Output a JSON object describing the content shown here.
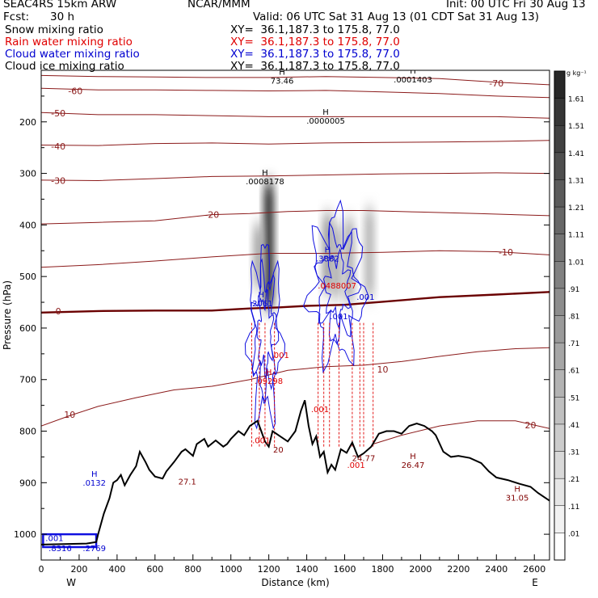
{
  "header": {
    "model": "SEAC4RS 15km ARW",
    "org": "NCAR/MMM",
    "init": "Init: 00 UTC Fri 30 Aug 13",
    "fcst_label": "Fcst:",
    "fcst_value": "30 h",
    "valid": "Valid: 06 UTC Sat 31 Aug 13 (01 CDT Sat 31 Aug 13)"
  },
  "legend": [
    {
      "label": "Snow mixing ratio",
      "xy": "XY=  36.1,187.3 to 175.8, 77.0",
      "color": "#000000"
    },
    {
      "label": "Rain water mixing ratio",
      "xy": "XY=  36.1,187.3 to 175.8, 77.0",
      "color": "#e00000"
    },
    {
      "label": "Cloud water mixing ratio",
      "xy": "XY=  36.1,187.3 to 175.8, 77.0",
      "color": "#0000d0"
    },
    {
      "label": "Cloud ice mixing ratio",
      "xy": "XY=  36.1,187.3 to 175.8, 77.0",
      "color": "#000000"
    }
  ],
  "chart_data": {
    "type": "cross-section",
    "xlabel": "Distance (km)",
    "ylabel": "Pressure (hPa)",
    "xlim": [
      0,
      2680
    ],
    "ylim": [
      1050,
      100
    ],
    "x_ticks": [
      0,
      200,
      400,
      600,
      800,
      1000,
      1200,
      1400,
      1600,
      1800,
      2000,
      2200,
      2400,
      2600
    ],
    "y_ticks": [
      200,
      300,
      400,
      500,
      600,
      700,
      800,
      900,
      1000
    ],
    "x_end_labels": {
      "left": "W",
      "right": "E"
    },
    "colorbar": {
      "unit": "g kg⁻¹",
      "labels": [
        "1.61",
        "1.51",
        "1.41",
        "1.31",
        "1.21",
        "1.11",
        "1.01",
        ".91",
        ".81",
        ".71",
        ".61",
        ".51",
        ".41",
        ".31",
        ".21",
        ".11",
        ".01"
      ]
    },
    "temperature_contours": [
      {
        "label": "-70",
        "x": 2400,
        "p": 125,
        "pts": [
          [
            0,
            110
          ],
          [
            300,
            112
          ],
          [
            600,
            113
          ],
          [
            900,
            114
          ],
          [
            1200,
            114
          ],
          [
            1500,
            112
          ],
          [
            1800,
            114
          ],
          [
            2100,
            116
          ],
          [
            2400,
            123
          ],
          [
            2680,
            128
          ]
        ]
      },
      {
        "label": "-60",
        "x": 180,
        "p": 140,
        "pts": [
          [
            0,
            135
          ],
          [
            300,
            138
          ],
          [
            600,
            138
          ],
          [
            900,
            139
          ],
          [
            1200,
            140
          ],
          [
            1500,
            139
          ],
          [
            1800,
            142
          ],
          [
            2100,
            145
          ],
          [
            2400,
            150
          ],
          [
            2680,
            153
          ]
        ]
      },
      {
        "label": "-50",
        "x": 90,
        "p": 183,
        "pts": [
          [
            0,
            182
          ],
          [
            300,
            186
          ],
          [
            600,
            186
          ],
          [
            900,
            188
          ],
          [
            1200,
            190
          ],
          [
            1500,
            190
          ],
          [
            1800,
            190
          ],
          [
            2100,
            190
          ],
          [
            2400,
            190
          ],
          [
            2680,
            193
          ]
        ]
      },
      {
        "label": "-40",
        "x": 90,
        "p": 247,
        "pts": [
          [
            0,
            245
          ],
          [
            300,
            246
          ],
          [
            600,
            242
          ],
          [
            900,
            241
          ],
          [
            1200,
            243
          ],
          [
            1500,
            241
          ],
          [
            1800,
            240
          ],
          [
            2100,
            239
          ],
          [
            2400,
            238
          ],
          [
            2680,
            236
          ]
        ]
      },
      {
        "label": "-30",
        "x": 90,
        "p": 314,
        "pts": [
          [
            0,
            313
          ],
          [
            300,
            314
          ],
          [
            600,
            310
          ],
          [
            900,
            306
          ],
          [
            1200,
            305
          ],
          [
            1500,
            303
          ],
          [
            1800,
            301
          ],
          [
            2100,
            300
          ],
          [
            2400,
            299
          ],
          [
            2680,
            300
          ]
        ]
      },
      {
        "label": "-20",
        "x": 900,
        "p": 380,
        "pts": [
          [
            0,
            398
          ],
          [
            300,
            395
          ],
          [
            600,
            392
          ],
          [
            900,
            380
          ],
          [
            1100,
            378
          ],
          [
            1300,
            374
          ],
          [
            1500,
            372
          ],
          [
            1700,
            372
          ],
          [
            2000,
            375
          ],
          [
            2300,
            378
          ],
          [
            2680,
            382
          ]
        ]
      },
      {
        "label": "-10",
        "x": 2450,
        "p": 453,
        "pts": [
          [
            0,
            482
          ],
          [
            300,
            477
          ],
          [
            600,
            470
          ],
          [
            900,
            462
          ],
          [
            1200,
            455
          ],
          [
            1500,
            455
          ],
          [
            1800,
            453
          ],
          [
            2100,
            450
          ],
          [
            2400,
            452
          ],
          [
            2680,
            458
          ]
        ]
      },
      {
        "label": "0",
        "x": 90,
        "p": 567,
        "pts": [
          [
            0,
            570
          ],
          [
            300,
            567
          ],
          [
            600,
            566
          ],
          [
            900,
            566
          ],
          [
            1100,
            562
          ],
          [
            1250,
            560
          ],
          [
            1400,
            557
          ],
          [
            1600,
            555
          ],
          [
            1800,
            549
          ],
          [
            2100,
            540
          ],
          [
            2400,
            535
          ],
          [
            2680,
            530
          ]
        ]
      },
      {
        "label": "10",
        "x": 150,
        "p": 768,
        "pts": [
          [
            0,
            790
          ],
          [
            150,
            770
          ],
          [
            300,
            752
          ],
          [
            500,
            735
          ],
          [
            700,
            720
          ],
          [
            900,
            713
          ],
          [
            1100,
            700
          ],
          [
            1300,
            682
          ],
          [
            1500,
            675
          ],
          [
            1700,
            672
          ],
          [
            1900,
            665
          ],
          [
            2100,
            655
          ],
          [
            2300,
            646
          ],
          [
            2500,
            640
          ],
          [
            2680,
            638
          ]
        ]
      },
      {
        "label": "10",
        "x": 1800,
        "p": 680,
        "pts": []
      },
      {
        "label": "20",
        "x": 2580,
        "p": 788,
        "pts": [
          [
            1750,
            825
          ],
          [
            1900,
            808
          ],
          [
            2100,
            790
          ],
          [
            2300,
            780
          ],
          [
            2500,
            780
          ],
          [
            2680,
            795
          ]
        ]
      }
    ],
    "terrain": [
      [
        0,
        1020
      ],
      [
        240,
        1018
      ],
      [
        290,
        1015
      ],
      [
        300,
        1000
      ],
      [
        330,
        960
      ],
      [
        360,
        930
      ],
      [
        380,
        900
      ],
      [
        400,
        895
      ],
      [
        420,
        885
      ],
      [
        440,
        905
      ],
      [
        470,
        885
      ],
      [
        500,
        868
      ],
      [
        520,
        840
      ],
      [
        550,
        860
      ],
      [
        570,
        875
      ],
      [
        600,
        888
      ],
      [
        640,
        892
      ],
      [
        660,
        878
      ],
      [
        700,
        860
      ],
      [
        740,
        840
      ],
      [
        760,
        835
      ],
      [
        800,
        848
      ],
      [
        820,
        825
      ],
      [
        860,
        815
      ],
      [
        880,
        830
      ],
      [
        920,
        818
      ],
      [
        960,
        830
      ],
      [
        980,
        825
      ],
      [
        1000,
        815
      ],
      [
        1040,
        800
      ],
      [
        1070,
        808
      ],
      [
        1100,
        790
      ],
      [
        1140,
        780
      ],
      [
        1160,
        800
      ],
      [
        1180,
        820
      ],
      [
        1200,
        830
      ],
      [
        1220,
        800
      ],
      [
        1260,
        810
      ],
      [
        1300,
        820
      ],
      [
        1340,
        800
      ],
      [
        1370,
        760
      ],
      [
        1390,
        740
      ],
      [
        1410,
        790
      ],
      [
        1430,
        825
      ],
      [
        1450,
        810
      ],
      [
        1470,
        850
      ],
      [
        1490,
        840
      ],
      [
        1510,
        880
      ],
      [
        1530,
        865
      ],
      [
        1550,
        875
      ],
      [
        1580,
        835
      ],
      [
        1610,
        842
      ],
      [
        1640,
        822
      ],
      [
        1670,
        850
      ],
      [
        1700,
        843
      ],
      [
        1740,
        830
      ],
      [
        1780,
        805
      ],
      [
        1820,
        800
      ],
      [
        1860,
        800
      ],
      [
        1900,
        805
      ],
      [
        1940,
        790
      ],
      [
        1980,
        785
      ],
      [
        2020,
        790
      ],
      [
        2060,
        800
      ],
      [
        2080,
        808
      ],
      [
        2120,
        840
      ],
      [
        2160,
        850
      ],
      [
        2200,
        848
      ],
      [
        2260,
        852
      ],
      [
        2320,
        862
      ],
      [
        2360,
        878
      ],
      [
        2400,
        890
      ],
      [
        2460,
        895
      ],
      [
        2520,
        902
      ],
      [
        2580,
        908
      ],
      [
        2620,
        920
      ],
      [
        2680,
        935
      ]
    ],
    "annotations": [
      {
        "mark": "H",
        "value": "73.46",
        "x": 1270,
        "p": 123,
        "color": "#000000"
      },
      {
        "mark": "H",
        "value": ".0001403",
        "x": 1960,
        "p": 120,
        "color": "#000000"
      },
      {
        "mark": "H",
        "value": ".0000005",
        "x": 1500,
        "p": 200,
        "color": "#000000"
      },
      {
        "mark": "H",
        "value": ".0008178",
        "x": 1180,
        "p": 318,
        "color": "#000000"
      },
      {
        "mark": "H",
        "value": ".3882",
        "x": 1510,
        "p": 468,
        "color": "#0000d0"
      },
      {
        "mark": "",
        "value": ".0488007",
        "x": 1560,
        "p": 520,
        "color": "#e00000"
      },
      {
        "mark": "H",
        "value": ".2061",
        "x": 1160,
        "p": 555,
        "color": "#0000d0"
      },
      {
        "mark": "",
        "value": ".001",
        "x": 1710,
        "p": 542,
        "color": "#0000d0"
      },
      {
        "mark": "",
        "value": ".001",
        "x": 1570,
        "p": 580,
        "color": "#0000d0"
      },
      {
        "mark": "",
        "value": ".001",
        "x": 1260,
        "p": 655,
        "color": "#e00000"
      },
      {
        "mark": "H",
        "value": ".09298",
        "x": 1200,
        "p": 705,
        "color": "#e00000"
      },
      {
        "mark": "",
        "value": ".001",
        "x": 1470,
        "p": 760,
        "color": "#e00000"
      },
      {
        "mark": "",
        "value": ".001",
        "x": 1160,
        "p": 820,
        "color": "#e00000"
      },
      {
        "mark": "",
        "value": "20",
        "x": 1250,
        "p": 838,
        "color": "#800000"
      },
      {
        "mark": "H",
        "value": "26.47",
        "x": 1960,
        "p": 868,
        "color": "#800000"
      },
      {
        "mark": "",
        "value": "24.77",
        "x": 1700,
        "p": 855,
        "color": "#800000"
      },
      {
        "mark": "",
        "value": ".001",
        "x": 1660,
        "p": 868,
        "color": "#e00000"
      },
      {
        "mark": "",
        "value": "27.1",
        "x": 770,
        "p": 900,
        "color": "#800000"
      },
      {
        "mark": "H",
        "value": "31.05",
        "x": 2510,
        "p": 932,
        "color": "#800000"
      },
      {
        "mark": "H",
        "value": ".0132",
        "x": 280,
        "p": 903,
        "color": "#0000d0"
      },
      {
        "mark": "",
        "value": ".001",
        "x": 70,
        "p": 1010,
        "color": "#0000d0"
      },
      {
        "mark": "",
        "value": ".8316",
        "x": 100,
        "p": 1030,
        "color": "#0000d0"
      },
      {
        "mark": "",
        "value": ".2769",
        "x": 280,
        "p": 1030,
        "color": "#0000d0"
      }
    ],
    "snow_columns": [
      {
        "x": 1200,
        "p_top": 320,
        "p_bot": 560,
        "strength": 0.95
      },
      {
        "x": 1145,
        "p_top": 400,
        "p_bot": 520,
        "strength": 0.35
      },
      {
        "x": 1510,
        "p_top": 380,
        "p_bot": 530,
        "strength": 0.4
      },
      {
        "x": 1560,
        "p_top": 400,
        "p_bot": 540,
        "strength": 0.3
      },
      {
        "x": 1625,
        "p_top": 390,
        "p_bot": 550,
        "strength": 0.3
      },
      {
        "x": 1730,
        "p_top": 370,
        "p_bot": 540,
        "strength": 0.25
      }
    ],
    "rain_columns": [
      1110,
      1150,
      1180,
      1230,
      1460,
      1490,
      1520,
      1570,
      1640,
      1680,
      1700,
      1750
    ],
    "cloud_regions": [
      {
        "cx": 1180,
        "p_mid": 610,
        "width": 160,
        "p_half": 150
      },
      {
        "cx": 1560,
        "p_mid": 520,
        "width": 260,
        "p_half": 130
      }
    ]
  }
}
